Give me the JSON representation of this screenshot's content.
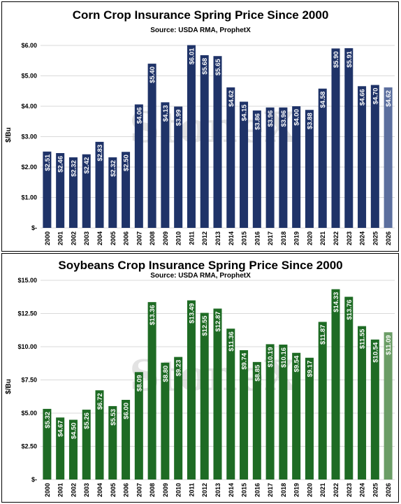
{
  "watermark": "StoneX",
  "colors": {
    "corn_bar": "#1f3368",
    "corn_bar_latest": "#5c6f9e",
    "soy_bar": "#1e6b24",
    "soy_bar_latest": "#6b9d66",
    "grid": "#d9d9d9",
    "label_text": "#ffffff",
    "watermark": "#c8c8c8"
  },
  "chart_data": [
    {
      "type": "bar",
      "title": "Corn Crop Insurance Spring Price Since 2000",
      "subtitle": "Source: USDA RMA, ProphetX",
      "ylabel": "$/Bu",
      "xlabel": "",
      "ylim": [
        0,
        6
      ],
      "yticks": [
        0,
        1,
        2,
        3,
        4,
        5,
        6
      ],
      "ytick_labels": [
        "$-",
        "$1.00",
        "$2.00",
        "$3.00",
        "$4.00",
        "$5.00",
        "$6.00"
      ],
      "grid": true,
      "categories": [
        "2000",
        "2001",
        "2002",
        "2003",
        "2004",
        "2005",
        "2006",
        "2007",
        "2008",
        "2009",
        "2010",
        "2011",
        "2012",
        "2013",
        "2014",
        "2015",
        "2016",
        "2017",
        "2018",
        "2019",
        "2020",
        "2021",
        "2022",
        "2023",
        "2024",
        "2025",
        "2026"
      ],
      "values": [
        2.51,
        2.46,
        2.32,
        2.42,
        2.83,
        2.32,
        2.5,
        4.06,
        5.4,
        4.13,
        3.99,
        6.01,
        5.68,
        5.65,
        4.62,
        4.15,
        3.86,
        3.96,
        3.96,
        4.0,
        3.88,
        4.58,
        5.9,
        5.91,
        4.66,
        4.7,
        4.62
      ],
      "data_labels": [
        "$2.51",
        "$2.46",
        "$2.32",
        "$2.42",
        "$2.83",
        "$2.32",
        "$2.50",
        "$4.06",
        "$5.40",
        "$4.13",
        "$3.99",
        "$6.01",
        "$5.68",
        "$5.65",
        "$4.62",
        "$4.15",
        "$3.86",
        "$3.96",
        "$3.96",
        "$4.00",
        "$3.88",
        "$4.58",
        "$5.90",
        "$5.91",
        "$4.66",
        "$4.70",
        "$4.62"
      ]
    },
    {
      "type": "bar",
      "title": "Soybeans Crop Insurance Spring Price Since 2000",
      "subtitle": "Source: USDA RMA, ProphetX",
      "ylabel": "$/Bu",
      "xlabel": "",
      "ylim": [
        0,
        15
      ],
      "yticks": [
        0,
        2.5,
        5,
        7.5,
        10,
        12.5,
        15
      ],
      "ytick_labels": [
        "$-",
        "$2.50",
        "$5.00",
        "$7.50",
        "$10.00",
        "$12.50",
        "$15.00"
      ],
      "grid": true,
      "categories": [
        "2000",
        "2001",
        "2002",
        "2003",
        "2004",
        "2005",
        "2006",
        "2007",
        "2008",
        "2009",
        "2010",
        "2011",
        "2012",
        "2013",
        "2014",
        "2015",
        "2016",
        "2017",
        "2018",
        "2019",
        "2020",
        "2021",
        "2022",
        "2023",
        "2024",
        "2025",
        "2026"
      ],
      "values": [
        5.32,
        4.67,
        4.5,
        5.26,
        6.72,
        5.53,
        6.0,
        8.09,
        13.36,
        8.8,
        9.23,
        13.49,
        12.55,
        12.87,
        11.36,
        9.74,
        8.85,
        10.19,
        10.16,
        9.54,
        9.17,
        11.87,
        14.33,
        13.76,
        11.55,
        10.54,
        11.09
      ],
      "data_labels": [
        "$5.32",
        "$4.67",
        "$4.50",
        "$5.26",
        "$6.72",
        "$5.53",
        "$6.00",
        "$8.09",
        "$13.36",
        "$8.80",
        "$9.23",
        "$13.49",
        "$12.55",
        "$12.87",
        "$11.36",
        "$9.74",
        "$8.85",
        "$10.19",
        "$10.16",
        "$9.54",
        "$9.17",
        "$11.87",
        "$14.33",
        "$13.76",
        "$11.55",
        "$10.54",
        "$11.09"
      ]
    }
  ]
}
